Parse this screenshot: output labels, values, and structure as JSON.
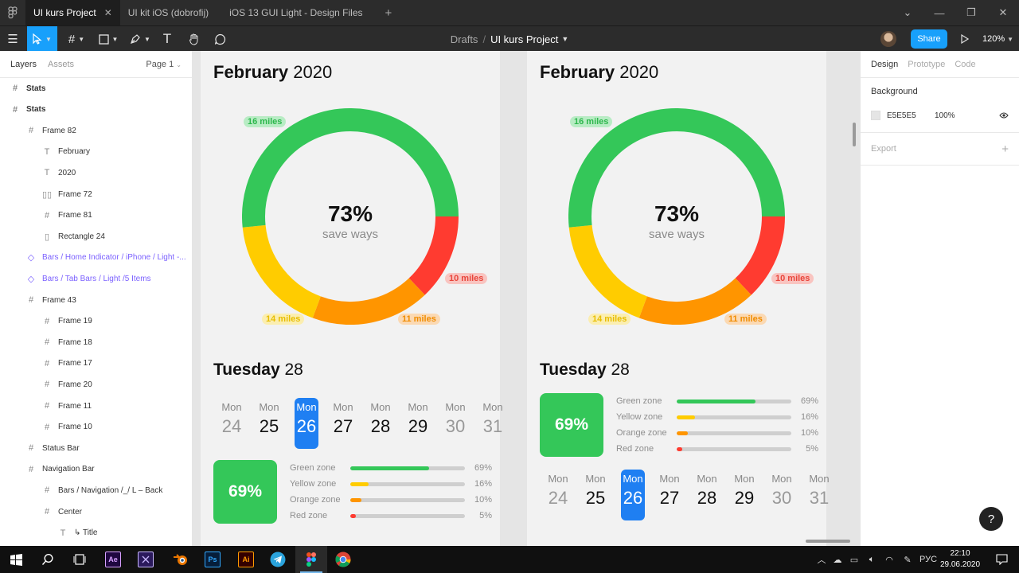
{
  "tabs": [
    {
      "label": "UI kurs Project",
      "active": true
    },
    {
      "label": "UI kit iOS (dobrofij)",
      "active": false
    },
    {
      "label": "iOS 13 GUI Light - Design Files",
      "active": false
    }
  ],
  "toolbar": {
    "breadcrumb_drafts": "Drafts",
    "breadcrumb_sep": "/",
    "project_name": "UI kurs Project",
    "share_label": "Share",
    "zoom": "120%"
  },
  "left_panel": {
    "tab_layers": "Layers",
    "tab_assets": "Assets",
    "page": "Page 1",
    "layers": [
      {
        "label": "Stats",
        "icon": "#",
        "indent": 0,
        "style": "bold"
      },
      {
        "label": "Stats",
        "icon": "#",
        "indent": 0,
        "style": "bold"
      },
      {
        "label": "Frame 82",
        "icon": "#",
        "indent": 1,
        "style": "normal"
      },
      {
        "label": "February",
        "icon": "T",
        "indent": 2,
        "style": "normal"
      },
      {
        "label": "2020",
        "icon": "T",
        "indent": 2,
        "style": "normal"
      },
      {
        "label": "Frame 72",
        "icon": "▯▯",
        "indent": 2,
        "style": "normal"
      },
      {
        "label": "Frame 81",
        "icon": "#",
        "indent": 2,
        "style": "normal"
      },
      {
        "label": "Rectangle 24",
        "icon": "▯",
        "indent": 2,
        "style": "normal"
      },
      {
        "label": "Bars / Home Indicator / iPhone / Light -...",
        "icon": "◇",
        "indent": 1,
        "style": "component"
      },
      {
        "label": "Bars / Tab Bars / Light /5 Items",
        "icon": "◇",
        "indent": 1,
        "style": "component"
      },
      {
        "label": "Frame 43",
        "icon": "#",
        "indent": 1,
        "style": "normal"
      },
      {
        "label": "Frame 19",
        "icon": "#",
        "indent": 2,
        "style": "normal"
      },
      {
        "label": "Frame 18",
        "icon": "#",
        "indent": 2,
        "style": "normal"
      },
      {
        "label": "Frame 17",
        "icon": "#",
        "indent": 2,
        "style": "normal"
      },
      {
        "label": "Frame 20",
        "icon": "#",
        "indent": 2,
        "style": "normal"
      },
      {
        "label": "Frame 11",
        "icon": "#",
        "indent": 2,
        "style": "normal"
      },
      {
        "label": "Frame 10",
        "icon": "#",
        "indent": 2,
        "style": "normal"
      },
      {
        "label": "Status Bar",
        "icon": "#",
        "indent": 1,
        "style": "normal"
      },
      {
        "label": "Navigation Bar",
        "icon": "#",
        "indent": 1,
        "style": "normal"
      },
      {
        "label": "Bars / Navigation /_/ L – Back",
        "icon": "#",
        "indent": 2,
        "style": "normal"
      },
      {
        "label": "Center",
        "icon": "#",
        "indent": 2,
        "style": "normal"
      },
      {
        "label": "↳ Title",
        "icon": "T",
        "indent": 3,
        "style": "normal"
      }
    ]
  },
  "frames": [
    {
      "month": "February",
      "year": "2020",
      "center_value": "73%",
      "center_label": "save ways",
      "donut": [
        {
          "label": "16 miles",
          "value": 16,
          "color": "#34C759"
        },
        {
          "label": "10 miles",
          "value": 4,
          "color": "#FF3B30"
        },
        {
          "label": "11 miles",
          "value": 5.5,
          "color": "#FF9500"
        },
        {
          "label": "14 miles",
          "value": 5.5,
          "color": "#FFCC00"
        }
      ],
      "pill_labels": {
        "green": "16 miles",
        "red": "10 miles",
        "orange": "11 miles",
        "yellow": "14 miles"
      },
      "day_name": "Tuesday",
      "day_num": "28",
      "zone_total": "69%",
      "layout": "calendar-first"
    },
    {
      "month": "February",
      "year": "2020",
      "center_value": "73%",
      "center_label": "save ways",
      "donut": [
        {
          "label": "16 miles",
          "value": 16,
          "color": "#34C759"
        },
        {
          "label": "10 miles",
          "value": 4,
          "color": "#FF3B30"
        },
        {
          "label": "11 miles",
          "value": 5.5,
          "color": "#FF9500"
        },
        {
          "label": "14 miles",
          "value": 5.5,
          "color": "#FFCC00"
        }
      ],
      "pill_labels": {
        "green": "16 miles",
        "red": "10 miles",
        "orange": "11 miles",
        "yellow": "14 miles"
      },
      "day_name": "Tuesday",
      "day_num": "28",
      "zone_total": "69%",
      "layout": "zones-first"
    }
  ],
  "calendar": [
    {
      "weekday": "Mon",
      "num": "24",
      "state": "dim"
    },
    {
      "weekday": "Mon",
      "num": "25",
      "state": "normal"
    },
    {
      "weekday": "Mon",
      "num": "26",
      "state": "selected"
    },
    {
      "weekday": "Mon",
      "num": "27",
      "state": "normal"
    },
    {
      "weekday": "Mon",
      "num": "28",
      "state": "normal"
    },
    {
      "weekday": "Mon",
      "num": "29",
      "state": "normal"
    },
    {
      "weekday": "Mon",
      "num": "30",
      "state": "dim"
    },
    {
      "weekday": "Mon",
      "num": "31",
      "state": "dim"
    }
  ],
  "zones": [
    {
      "label": "Green zone",
      "percent": "69%",
      "fraction": 0.69,
      "color": "#34C759"
    },
    {
      "label": "Yellow zone",
      "percent": "16%",
      "fraction": 0.16,
      "color": "#FFCC00"
    },
    {
      "label": "Orange zone",
      "percent": "10%",
      "fraction": 0.1,
      "color": "#FF9500"
    },
    {
      "label": "Red zone",
      "percent": "5%",
      "fraction": 0.05,
      "color": "#FF3B30"
    }
  ],
  "right_panel": {
    "tab_design": "Design",
    "tab_prototype": "Prototype",
    "tab_code": "Code",
    "background_heading": "Background",
    "bg_hex": "E5E5E5",
    "bg_opacity": "100%",
    "export_label": "Export"
  },
  "help_label": "?",
  "taskbar": {
    "apps": [
      {
        "name": "after-effects",
        "label": "Ae",
        "bg": "#1f0740",
        "fg": "#d8a1ff"
      },
      {
        "name": "premiere-alt",
        "label": "",
        "bg": "#2b1a5c",
        "fg": "#c9b8ff"
      },
      {
        "name": "blender",
        "label": "",
        "bg": "",
        "fg": ""
      },
      {
        "name": "photoshop",
        "label": "Ps",
        "bg": "#061e3a",
        "fg": "#31a8ff"
      },
      {
        "name": "illustrator",
        "label": "Ai",
        "bg": "#330000",
        "fg": "#ff9a00"
      },
      {
        "name": "telegram",
        "label": "",
        "bg": "",
        "fg": ""
      },
      {
        "name": "figma",
        "label": "",
        "bg": "",
        "fg": ""
      },
      {
        "name": "chrome",
        "label": "",
        "bg": "",
        "fg": ""
      }
    ],
    "lang": "РУС",
    "time": "22:10",
    "date": "29.06.2020"
  }
}
